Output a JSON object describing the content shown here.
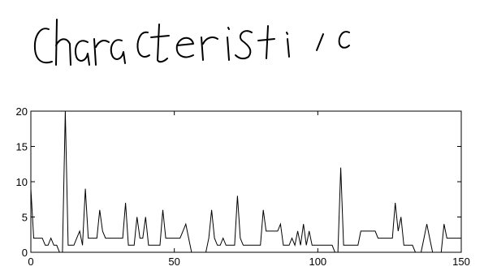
{
  "handwriting": {
    "text": "characteristic"
  },
  "chart_data": {
    "type": "line",
    "title": "",
    "xlabel": "",
    "ylabel": "",
    "xlim": [
      0,
      150
    ],
    "ylim": [
      0,
      20
    ],
    "xticks": [
      0,
      50,
      100,
      150
    ],
    "yticks": [
      0,
      5,
      10,
      15,
      20
    ],
    "grid": false,
    "series": [
      {
        "color": "#000000",
        "x": [
          0,
          1,
          2,
          3,
          4,
          5,
          6,
          7,
          8,
          9,
          10,
          11,
          12,
          13,
          14,
          15,
          16,
          17,
          18,
          19,
          20,
          21,
          22,
          23,
          24,
          25,
          26,
          27,
          28,
          29,
          30,
          31,
          32,
          33,
          34,
          35,
          36,
          37,
          38,
          39,
          40,
          41,
          42,
          43,
          44,
          45,
          46,
          47,
          48,
          49,
          50,
          51,
          52,
          53,
          54,
          55,
          56,
          57,
          58,
          59,
          60,
          61,
          62,
          63,
          64,
          65,
          66,
          67,
          68,
          69,
          70,
          71,
          72,
          73,
          74,
          75,
          76,
          77,
          78,
          79,
          80,
          81,
          82,
          83,
          84,
          85,
          86,
          87,
          88,
          89,
          90,
          91,
          92,
          93,
          94,
          95,
          96,
          97,
          98,
          99,
          100,
          101,
          102,
          103,
          104,
          105,
          106,
          107,
          108,
          109,
          110,
          111,
          112,
          113,
          114,
          115,
          116,
          117,
          118,
          119,
          120,
          121,
          122,
          123,
          124,
          125,
          126,
          127,
          128,
          129,
          130,
          131,
          132,
          133,
          134,
          135,
          136,
          137,
          138,
          139,
          140,
          141,
          142,
          143,
          144,
          145,
          146,
          147,
          148,
          149,
          150
        ],
        "y": [
          9,
          2,
          2,
          2,
          2,
          1,
          1,
          2,
          1,
          1,
          0,
          0,
          20,
          1,
          1,
          1,
          2,
          3,
          1,
          9,
          2,
          2,
          2,
          2,
          6,
          3,
          2,
          2,
          2,
          2,
          2,
          2,
          2,
          7,
          1,
          1,
          1,
          5,
          2,
          2,
          5,
          1,
          1,
          1,
          1,
          1,
          6,
          2,
          2,
          2,
          2,
          2,
          2,
          3,
          4,
          2,
          0,
          0,
          0,
          0,
          0,
          0,
          2,
          6,
          2,
          1,
          1,
          2,
          1,
          1,
          1,
          1,
          8,
          2,
          1,
          1,
          1,
          1,
          1,
          1,
          1,
          6,
          3,
          3,
          3,
          3,
          3,
          4,
          1,
          1,
          1,
          2,
          1,
          3,
          1,
          4,
          1,
          3,
          1,
          1,
          1,
          1,
          1,
          1,
          1,
          1,
          0,
          0,
          12,
          1,
          1,
          1,
          1,
          1,
          1,
          3,
          3,
          3,
          3,
          3,
          3,
          2,
          2,
          2,
          2,
          2,
          2,
          7,
          3,
          5,
          1,
          1,
          1,
          1,
          0,
          0,
          0,
          2,
          4,
          2,
          0,
          0,
          0,
          0,
          4,
          2,
          2,
          2,
          2,
          2,
          2
        ]
      }
    ]
  }
}
